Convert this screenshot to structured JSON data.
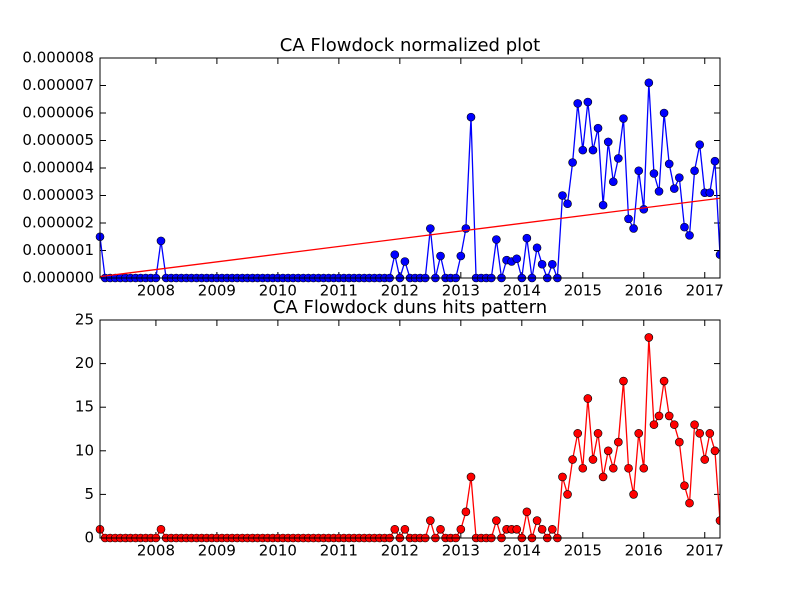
{
  "chart_data": [
    {
      "type": "line",
      "title": "CA Flowdock normalized plot",
      "x": [
        2007.083,
        2007.167,
        2007.25,
        2007.333,
        2007.417,
        2007.5,
        2007.583,
        2007.667,
        2007.75,
        2007.833,
        2007.917,
        2008,
        2008.083,
        2008.167,
        2008.25,
        2008.333,
        2008.417,
        2008.5,
        2008.583,
        2008.667,
        2008.75,
        2008.833,
        2008.917,
        2009,
        2009.083,
        2009.167,
        2009.25,
        2009.333,
        2009.417,
        2009.5,
        2009.583,
        2009.667,
        2009.75,
        2009.833,
        2009.917,
        2010,
        2010.083,
        2010.167,
        2010.25,
        2010.333,
        2010.417,
        2010.5,
        2010.583,
        2010.667,
        2010.75,
        2010.833,
        2010.917,
        2011,
        2011.083,
        2011.167,
        2011.25,
        2011.333,
        2011.417,
        2011.5,
        2011.583,
        2011.667,
        2011.75,
        2011.833,
        2011.917,
        2012,
        2012.083,
        2012.167,
        2012.25,
        2012.333,
        2012.417,
        2012.5,
        2012.583,
        2012.667,
        2012.75,
        2012.833,
        2012.917,
        2013,
        2013.083,
        2013.167,
        2013.25,
        2013.333,
        2013.417,
        2013.5,
        2013.583,
        2013.667,
        2013.75,
        2013.833,
        2013.917,
        2014,
        2014.083,
        2014.167,
        2014.25,
        2014.333,
        2014.417,
        2014.5,
        2014.583,
        2014.667,
        2014.75,
        2014.833,
        2014.917,
        2015,
        2015.083,
        2015.167,
        2015.25,
        2015.333,
        2015.417,
        2015.5,
        2015.583,
        2015.667,
        2015.75,
        2015.833,
        2015.917,
        2016,
        2016.083,
        2016.167,
        2016.25,
        2016.333,
        2016.417,
        2016.5,
        2016.583,
        2016.667,
        2016.75,
        2016.833,
        2016.917,
        2017,
        2017.083,
        2017.167,
        2017.25
      ],
      "series": [
        {
          "color": "#0000ff",
          "marker": true,
          "values": [
            1.5e-06,
            0,
            0,
            0,
            0,
            0,
            0,
            0,
            0,
            0,
            0,
            0,
            1.35e-06,
            0,
            0,
            0,
            0,
            0,
            0,
            0,
            0,
            0,
            0,
            0,
            0,
            0,
            0,
            0,
            0,
            0,
            0,
            0,
            0,
            0,
            0,
            0,
            0,
            0,
            0,
            0,
            0,
            0,
            0,
            0,
            0,
            0,
            0,
            0,
            0,
            0,
            0,
            0,
            0,
            0,
            0,
            0,
            0,
            0,
            8.5e-07,
            0,
            6e-07,
            0,
            0,
            0,
            0,
            1.8e-06,
            0,
            8e-07,
            0,
            0,
            0,
            8e-07,
            1.8e-06,
            5.85e-06,
            0,
            0,
            0,
            0,
            1.4e-06,
            0,
            6.5e-07,
            6e-07,
            7e-07,
            0,
            1.45e-06,
            0,
            1.1e-06,
            5e-07,
            0,
            5e-07,
            0,
            3e-06,
            2.7e-06,
            4.2e-06,
            6.35e-06,
            4.65e-06,
            6.4e-06,
            4.65e-06,
            5.45e-06,
            2.65e-06,
            4.95e-06,
            3.5e-06,
            4.35e-06,
            5.8e-06,
            2.15e-06,
            1.8e-06,
            3.9e-06,
            2.5e-06,
            7.1e-06,
            3.8e-06,
            3.15e-06,
            6e-06,
            4.15e-06,
            3.25e-06,
            3.65e-06,
            1.85e-06,
            1.55e-06,
            3.9e-06,
            4.85e-06,
            3.1e-06,
            3.1e-06,
            4.25e-06,
            8.5e-07
          ]
        },
        {
          "color": "#ff0000",
          "marker": false,
          "x": [
            2007.083,
            2017.25
          ],
          "values": [
            5e-08,
            2.9e-06
          ]
        }
      ],
      "xlim": [
        2007.083,
        2017.25
      ],
      "xticks": [
        2008,
        2009,
        2010,
        2011,
        2012,
        2013,
        2014,
        2015,
        2016,
        2017
      ],
      "ylim": [
        0,
        8e-06
      ],
      "yticks": [
        {
          "value": 0,
          "label": "0.000000"
        },
        {
          "value": 1e-06,
          "label": "0.000001"
        },
        {
          "value": 2e-06,
          "label": "0.000002"
        },
        {
          "value": 3e-06,
          "label": "0.000003"
        },
        {
          "value": 4e-06,
          "label": "0.000004"
        },
        {
          "value": 5e-06,
          "label": "0.000005"
        },
        {
          "value": 6e-06,
          "label": "0.000006"
        },
        {
          "value": 7e-06,
          "label": "0.000007"
        },
        {
          "value": 8e-06,
          "label": "0.000008"
        }
      ]
    },
    {
      "type": "line",
      "title": "CA Flowdock duns hits pattern",
      "x": [
        2007.083,
        2007.167,
        2007.25,
        2007.333,
        2007.417,
        2007.5,
        2007.583,
        2007.667,
        2007.75,
        2007.833,
        2007.917,
        2008,
        2008.083,
        2008.167,
        2008.25,
        2008.333,
        2008.417,
        2008.5,
        2008.583,
        2008.667,
        2008.75,
        2008.833,
        2008.917,
        2009,
        2009.083,
        2009.167,
        2009.25,
        2009.333,
        2009.417,
        2009.5,
        2009.583,
        2009.667,
        2009.75,
        2009.833,
        2009.917,
        2010,
        2010.083,
        2010.167,
        2010.25,
        2010.333,
        2010.417,
        2010.5,
        2010.583,
        2010.667,
        2010.75,
        2010.833,
        2010.917,
        2011,
        2011.083,
        2011.167,
        2011.25,
        2011.333,
        2011.417,
        2011.5,
        2011.583,
        2011.667,
        2011.75,
        2011.833,
        2011.917,
        2012,
        2012.083,
        2012.167,
        2012.25,
        2012.333,
        2012.417,
        2012.5,
        2012.583,
        2012.667,
        2012.75,
        2012.833,
        2012.917,
        2013,
        2013.083,
        2013.167,
        2013.25,
        2013.333,
        2013.417,
        2013.5,
        2013.583,
        2013.667,
        2013.75,
        2013.833,
        2013.917,
        2014,
        2014.083,
        2014.167,
        2014.25,
        2014.333,
        2014.417,
        2014.5,
        2014.583,
        2014.667,
        2014.75,
        2014.833,
        2014.917,
        2015,
        2015.083,
        2015.167,
        2015.25,
        2015.333,
        2015.417,
        2015.5,
        2015.583,
        2015.667,
        2015.75,
        2015.833,
        2015.917,
        2016,
        2016.083,
        2016.167,
        2016.25,
        2016.333,
        2016.417,
        2016.5,
        2016.583,
        2016.667,
        2016.75,
        2016.833,
        2016.917,
        2017,
        2017.083,
        2017.167,
        2017.25
      ],
      "series": [
        {
          "color": "#ff0000",
          "marker": true,
          "values": [
            1,
            0,
            0,
            0,
            0,
            0,
            0,
            0,
            0,
            0,
            0,
            0,
            1,
            0,
            0,
            0,
            0,
            0,
            0,
            0,
            0,
            0,
            0,
            0,
            0,
            0,
            0,
            0,
            0,
            0,
            0,
            0,
            0,
            0,
            0,
            0,
            0,
            0,
            0,
            0,
            0,
            0,
            0,
            0,
            0,
            0,
            0,
            0,
            0,
            0,
            0,
            0,
            0,
            0,
            0,
            0,
            0,
            0,
            1,
            0,
            1,
            0,
            0,
            0,
            0,
            2,
            0,
            1,
            0,
            0,
            0,
            1,
            3,
            7,
            0,
            0,
            0,
            0,
            2,
            0,
            1,
            1,
            1,
            0,
            3,
            0,
            2,
            1,
            0,
            1,
            0,
            7,
            5,
            9,
            12,
            8,
            16,
            9,
            12,
            7,
            10,
            8,
            11,
            18,
            8,
            5,
            12,
            8,
            23,
            13,
            14,
            18,
            14,
            13,
            11,
            6,
            4,
            13,
            12,
            9,
            12,
            10,
            2
          ]
        }
      ],
      "xlim": [
        2007.083,
        2017.25
      ],
      "xticks": [
        2008,
        2009,
        2010,
        2011,
        2012,
        2013,
        2014,
        2015,
        2016,
        2017
      ],
      "ylim": [
        0,
        25
      ],
      "yticks": [
        0,
        5,
        10,
        15,
        20,
        25
      ]
    }
  ]
}
